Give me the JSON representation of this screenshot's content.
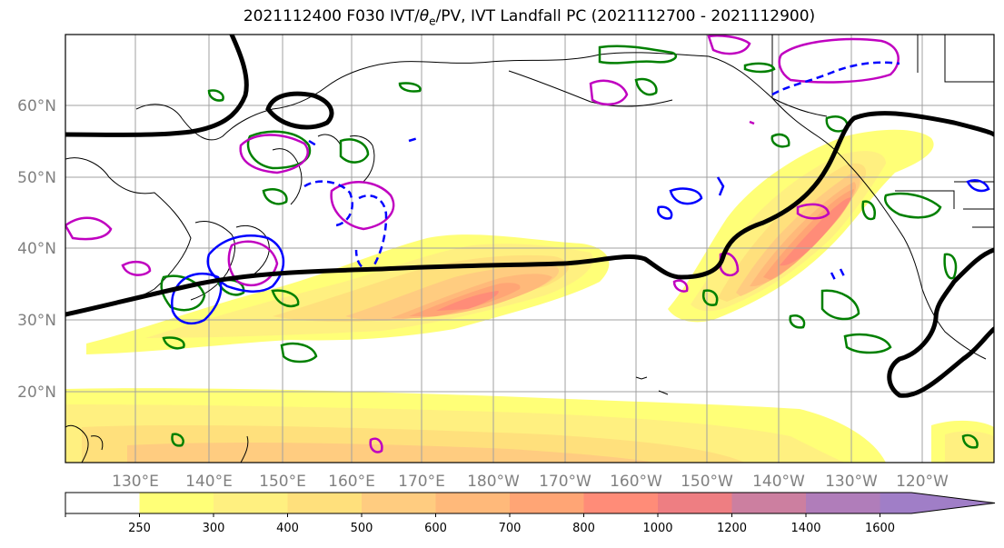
{
  "title": {
    "prefix": "2021112400 F030 IVT/",
    "theta": "θ",
    "theta_sub": "e",
    "suffix": "/PV, IVT Landfall PC (2021112700 - 2021112900)"
  },
  "map": {
    "lon_labels": [
      "130°E",
      "140°E",
      "150°E",
      "160°E",
      "170°E",
      "180°W",
      "170°W",
      "160°W",
      "150°W",
      "140°W",
      "130°W",
      "120°W"
    ],
    "lat_labels": [
      "60°N",
      "50°N",
      "40°N",
      "30°N",
      "20°N"
    ]
  },
  "colorbar": {
    "levels": [
      "250",
      "300",
      "400",
      "500",
      "600",
      "700",
      "800",
      "1000",
      "1200",
      "1400",
      "1600"
    ],
    "colors": [
      "#ffffff",
      "#ffff77",
      "#fff080",
      "#ffe07c",
      "#ffcc80",
      "#ffb97a",
      "#ffa575",
      "#ff8c78",
      "#ee7e82",
      "#cc7fa0",
      "#b07dba",
      "#a07ec7"
    ]
  },
  "legend_colors": {
    "ivt_fill_low": "#ffff77",
    "ivt_fill_mid": "#ffb97a",
    "ivt_fill_high": "#ff8c78",
    "pv_contour": "#008000",
    "theta_positive": "#c000c0",
    "theta_negative": "#0000ff",
    "landfall_pc": "#000000"
  }
}
